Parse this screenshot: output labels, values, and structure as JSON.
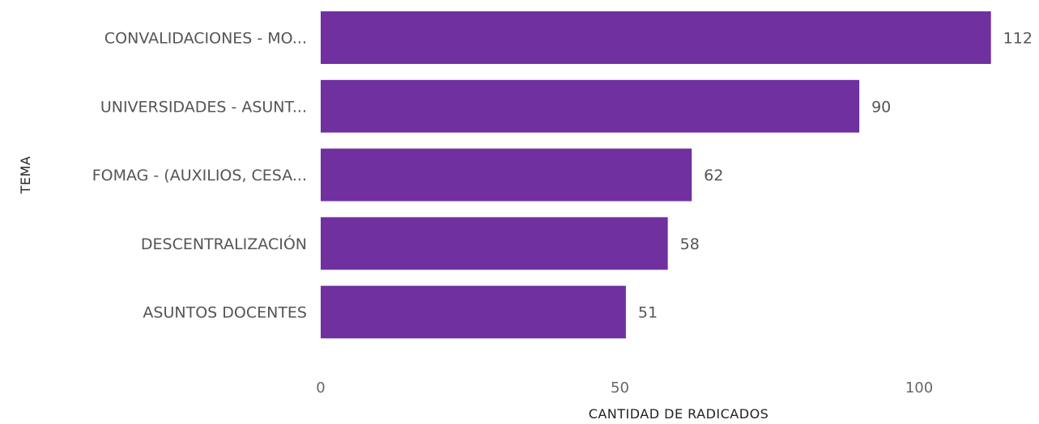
{
  "chart_data": {
    "type": "bar",
    "orientation": "horizontal",
    "categories": [
      "CONVALIDACIONES - MO...",
      "UNIVERSIDADES - ASUNT...",
      "FOMAG - (AUXILIOS, CESA...",
      "DESCENTRALIZACIÓN",
      "ASUNTOS DOCENTES"
    ],
    "values": [
      112,
      90,
      62,
      58,
      51
    ],
    "xlabel": "CANTIDAD DE RADICADOS",
    "ylabel": "TEMA",
    "xlim": [
      0,
      120
    ],
    "xticks": [
      "0",
      "50",
      "100"
    ],
    "bar_color": "#7030A0",
    "grid": false,
    "legend": "none"
  }
}
